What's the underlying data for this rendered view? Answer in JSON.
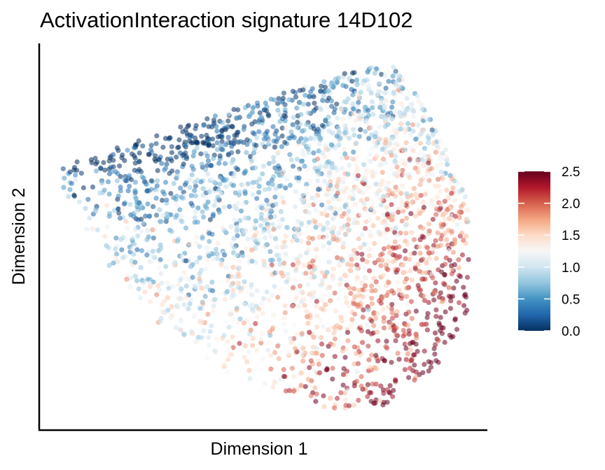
{
  "chart_data": {
    "type": "scatter",
    "title": "ActivationInteraction signature 14D102",
    "xlabel": "Dimension 1",
    "ylabel": "Dimension 2",
    "x_ticks_shown": false,
    "y_ticks_shown": false,
    "grid": false,
    "point_opacity": 0.55,
    "colorbar": {
      "range": [
        0,
        2.5
      ],
      "ticks": [
        "0.0",
        "0.5",
        "1.0",
        "1.5",
        "2.0",
        "2.5"
      ],
      "colors": [
        "#053061",
        "#2166ac",
        "#4393c3",
        "#92c5de",
        "#d1e5f0",
        "#f7f7f7",
        "#fddbc7",
        "#f4a582",
        "#d6604d",
        "#b2182b",
        "#67001f"
      ],
      "placement": "right"
    },
    "point_cloud": {
      "approx_count": 2600,
      "description_of_trend": "upper-left points low values (blue); lower-right points high values (red)"
    }
  }
}
